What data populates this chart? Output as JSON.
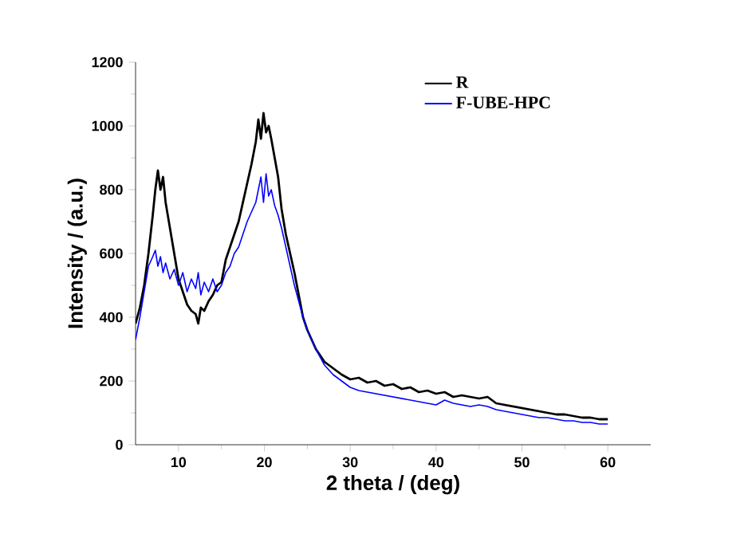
{
  "chart_data": {
    "type": "line",
    "xlabel": "2 theta / (deg)",
    "ylabel": "Intensity / (a.u.)",
    "xlim": [
      5,
      65
    ],
    "ylim": [
      0,
      1200
    ],
    "xticks": [
      10,
      20,
      30,
      40,
      50,
      60
    ],
    "yticks": [
      0,
      200,
      400,
      600,
      800,
      1000,
      1200
    ],
    "legend": "top right",
    "grid": false,
    "marker": "none",
    "line_style": "solid",
    "x": [
      5,
      5.5,
      6,
      6.5,
      7,
      7.3,
      7.6,
      7.9,
      8.2,
      8.5,
      9,
      9.5,
      10,
      10.5,
      11,
      11.5,
      12,
      12.3,
      12.6,
      13,
      13.5,
      14,
      14.5,
      15,
      15.5,
      16,
      16.5,
      17,
      17.5,
      18,
      18.5,
      19,
      19.3,
      19.6,
      19.9,
      20.2,
      20.5,
      20.8,
      21.2,
      21.6,
      22,
      22.5,
      23,
      23.5,
      24,
      24.5,
      25,
      25.5,
      26,
      27,
      28,
      29,
      30,
      31,
      32,
      33,
      34,
      35,
      36,
      37,
      38,
      39,
      40,
      41,
      42,
      43,
      44,
      45,
      46,
      47,
      48,
      49,
      50,
      51,
      52,
      53,
      54,
      55,
      56,
      57,
      58,
      59,
      60
    ],
    "series": [
      {
        "name": "R",
        "color": "#000000",
        "values": [
          380,
          430,
          500,
          600,
          720,
          800,
          860,
          800,
          840,
          760,
          680,
          600,
          520,
          480,
          440,
          420,
          410,
          380,
          430,
          420,
          450,
          470,
          500,
          510,
          580,
          620,
          660,
          700,
          760,
          820,
          880,
          950,
          1020,
          960,
          1040,
          980,
          1000,
          960,
          900,
          840,
          740,
          660,
          600,
          540,
          470,
          400,
          360,
          330,
          300,
          260,
          240,
          220,
          205,
          210,
          195,
          200,
          185,
          190,
          175,
          180,
          165,
          170,
          160,
          165,
          150,
          155,
          150,
          145,
          150,
          130,
          125,
          120,
          115,
          110,
          105,
          100,
          95,
          95,
          90,
          85,
          85,
          80,
          80
        ]
      },
      {
        "name": "F-UBE-HPC",
        "color": "#0000ff",
        "values": [
          330,
          400,
          480,
          560,
          590,
          610,
          560,
          590,
          540,
          570,
          520,
          550,
          500,
          540,
          480,
          520,
          490,
          540,
          470,
          510,
          480,
          520,
          480,
          500,
          540,
          560,
          600,
          620,
          660,
          700,
          730,
          760,
          800,
          840,
          760,
          850,
          780,
          800,
          750,
          720,
          680,
          620,
          560,
          500,
          450,
          400,
          360,
          330,
          300,
          250,
          220,
          200,
          180,
          170,
          165,
          160,
          155,
          150,
          145,
          140,
          135,
          130,
          125,
          140,
          130,
          125,
          120,
          125,
          120,
          110,
          105,
          100,
          95,
          90,
          85,
          85,
          80,
          75,
          75,
          70,
          70,
          65,
          65
        ]
      }
    ]
  }
}
